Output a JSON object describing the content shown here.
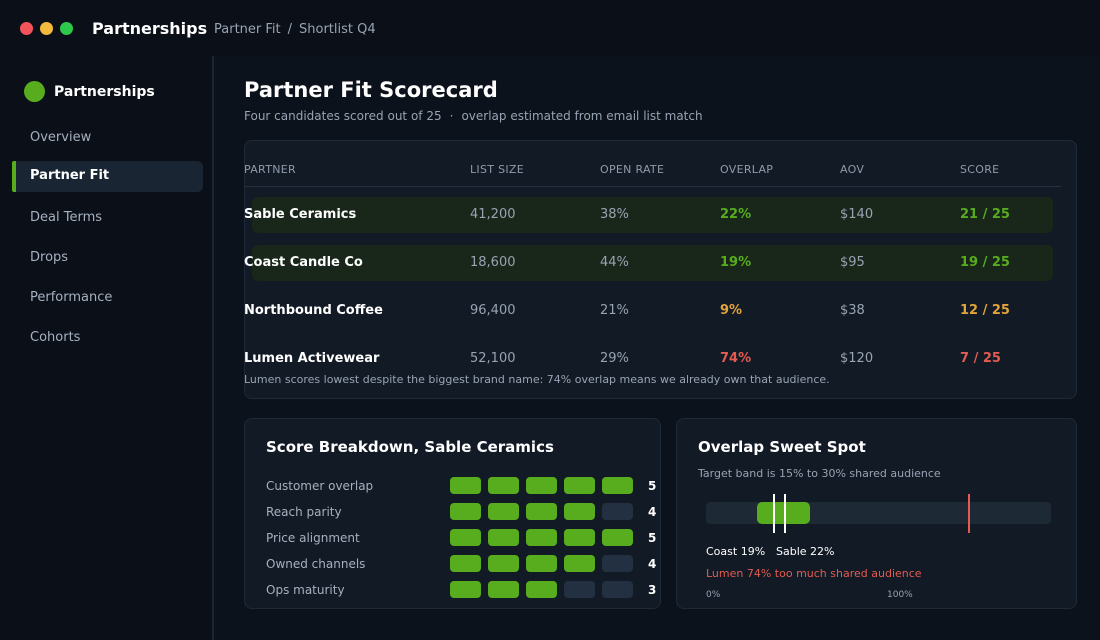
{
  "app": {
    "title": "Partnerships",
    "breadcrumb": [
      "Partner Fit",
      "Shortlist Q4"
    ]
  },
  "sidebar": {
    "brand": "Partnerships",
    "items": [
      {
        "label": "Overview",
        "active": false
      },
      {
        "label": "Partner Fit",
        "active": true
      },
      {
        "label": "Deal Terms",
        "active": false
      },
      {
        "label": "Drops",
        "active": false
      },
      {
        "label": "Performance",
        "active": false
      },
      {
        "label": "Cohorts",
        "active": false
      }
    ]
  },
  "page": {
    "title": "Partner Fit Scorecard",
    "subtitle_a": "Four candidates scored out of 25",
    "subtitle_sep": "·",
    "subtitle_b": "overlap estimated from email list match"
  },
  "table": {
    "columns": [
      "PARTNER",
      "LIST SIZE",
      "OPEN RATE",
      "OVERLAP",
      "AOV",
      "SCORE"
    ],
    "rows": [
      {
        "partner": "Sable Ceramics",
        "list_size": "41,200",
        "open_rate": "38%",
        "overlap": "22%",
        "aov": "$140",
        "score": "21 / 25",
        "status": "good"
      },
      {
        "partner": "Coast Candle Co",
        "list_size": "18,600",
        "open_rate": "44%",
        "overlap": "19%",
        "aov": "$95",
        "score": "19 / 25",
        "status": "good"
      },
      {
        "partner": "Northbound Coffee",
        "list_size": "96,400",
        "open_rate": "21%",
        "overlap": "9%",
        "aov": "$38",
        "score": "12 / 25",
        "status": "mid"
      },
      {
        "partner": "Lumen Activewear",
        "list_size": "52,100",
        "open_rate": "29%",
        "overlap": "74%",
        "aov": "$120",
        "score": "7 / 25",
        "status": "bad"
      }
    ],
    "note": "Lumen scores lowest despite the biggest brand name: 74% overlap means we already own that audience."
  },
  "score_breakdown": {
    "title": "Score Breakdown, Sable Ceramics",
    "max": 5,
    "criteria": [
      {
        "label": "Customer overlap",
        "value": 5
      },
      {
        "label": "Reach parity",
        "value": 4
      },
      {
        "label": "Price alignment",
        "value": 5
      },
      {
        "label": "Owned channels",
        "value": 4
      },
      {
        "label": "Ops maturity",
        "value": 3
      }
    ]
  },
  "overlap": {
    "title": "Overlap Sweet Spot",
    "subtitle": "Target band is 15% to 30% shared audience",
    "target_band": [
      15,
      30
    ],
    "markers": [
      {
        "name": "Coast",
        "value": 19
      },
      {
        "name": "Sable",
        "value": 22
      },
      {
        "name": "Lumen",
        "value": 74
      }
    ],
    "label_coast": "Coast 19%",
    "label_sable": "Sable 22%",
    "label_lumen": "Lumen 74%  too much shared audience",
    "axis_min": "0%",
    "axis_max": "100%"
  },
  "colors": {
    "good": "#58ad1e",
    "mid": "#e2a33c",
    "bad": "#e35b51",
    "marker": "#ffffff"
  }
}
